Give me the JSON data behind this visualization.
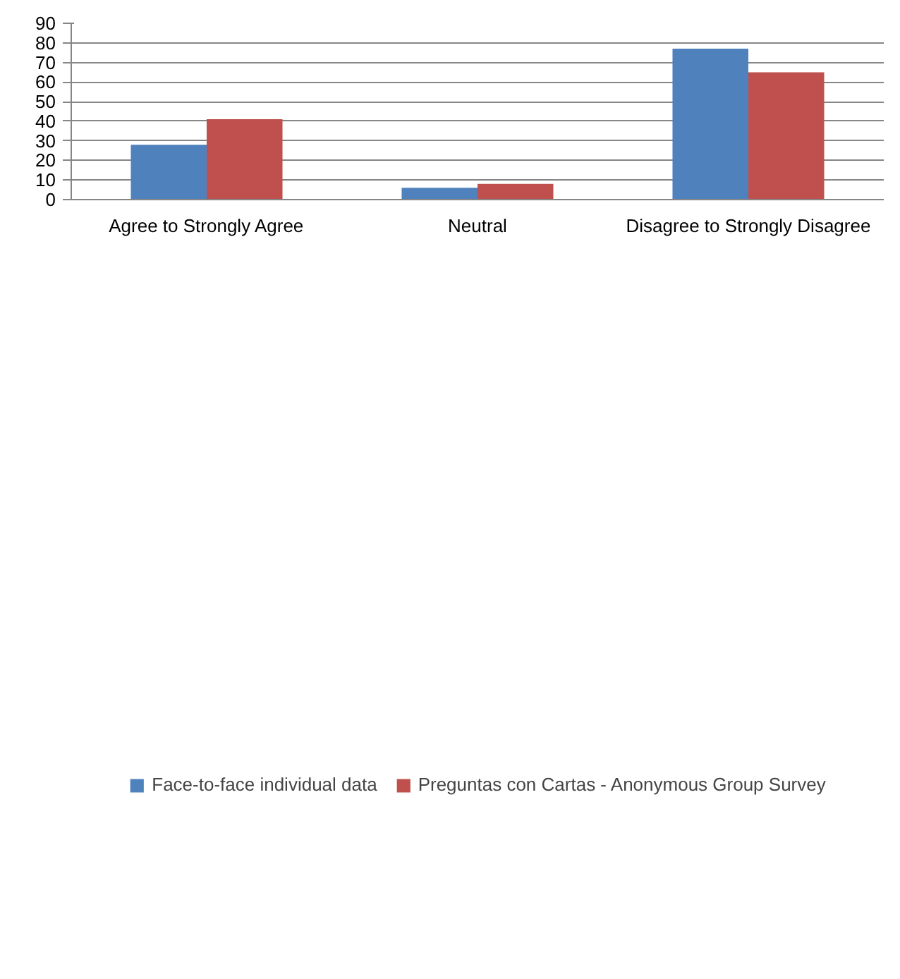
{
  "chart_data": {
    "type": "bar",
    "categories": [
      "Agree to Strongly Agree",
      "Neutral",
      "Disagree to Strongly Disagree"
    ],
    "series": [
      {
        "name": "Face-to-face individual data",
        "color": "#4f81bd",
        "values": [
          28,
          6,
          77
        ]
      },
      {
        "name": "Preguntas con Cartas - Anonymous Group Survey",
        "color": "#c0504d",
        "values": [
          41,
          8,
          65
        ]
      }
    ],
    "ylim": [
      0,
      90
    ],
    "yticks": [
      0,
      10,
      20,
      30,
      40,
      50,
      60,
      70,
      80,
      90
    ],
    "grid": "y",
    "legend": "bottom"
  }
}
